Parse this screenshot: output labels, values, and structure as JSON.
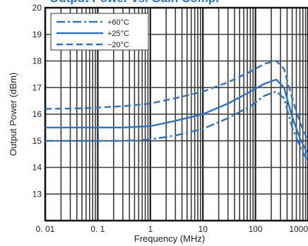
{
  "chart_data": {
    "type": "line",
    "title": "Output Power vs. Gain Compr",
    "xlabel": "Frequency (MHz)",
    "ylabel": "Output Power (dBm)",
    "x_scale": "log",
    "xlim": [
      0.01,
      1000
    ],
    "ylim": [
      12,
      20
    ],
    "x_ticks": [
      {
        "value": 0.01,
        "label": "0. 01"
      },
      {
        "value": 0.1,
        "label": "0. 1"
      },
      {
        "value": 1,
        "label": "1"
      },
      {
        "value": 10,
        "label": "10"
      },
      {
        "value": 100,
        "label": "100"
      },
      {
        "value": 1000,
        "label": "1000"
      }
    ],
    "y_ticks": [
      13,
      14,
      15,
      16,
      17,
      18,
      19,
      20
    ],
    "grid": true,
    "legend_position": "top-left",
    "series": [
      {
        "name": "+60°C",
        "style": "dash-dot",
        "color": "#2a74c9",
        "points": [
          [
            0.01,
            15.0
          ],
          [
            0.05,
            15.0
          ],
          [
            0.3,
            15.0
          ],
          [
            1,
            15.05
          ],
          [
            3,
            15.2
          ],
          [
            10,
            15.45
          ],
          [
            30,
            15.85
          ],
          [
            80,
            16.3
          ],
          [
            150,
            16.7
          ],
          [
            250,
            16.85
          ],
          [
            350,
            16.6
          ],
          [
            500,
            15.5
          ],
          [
            700,
            14.8
          ],
          [
            1000,
            14.2
          ]
        ]
      },
      {
        "name": "+25°C",
        "style": "solid",
        "color": "#2a74c9",
        "points": [
          [
            0.01,
            15.5
          ],
          [
            0.05,
            15.5
          ],
          [
            0.3,
            15.5
          ],
          [
            1,
            15.55
          ],
          [
            3,
            15.75
          ],
          [
            10,
            16.0
          ],
          [
            30,
            16.4
          ],
          [
            80,
            16.85
          ],
          [
            150,
            17.15
          ],
          [
            250,
            17.3
          ],
          [
            350,
            17.0
          ],
          [
            500,
            15.9
          ],
          [
            700,
            15.1
          ],
          [
            1000,
            14.5
          ]
        ]
      },
      {
        "name": "−20°C",
        "style": "dashed",
        "color": "#2a74c9",
        "points": [
          [
            0.01,
            16.2
          ],
          [
            0.05,
            16.22
          ],
          [
            0.3,
            16.3
          ],
          [
            1,
            16.4
          ],
          [
            3,
            16.6
          ],
          [
            10,
            16.85
          ],
          [
            30,
            17.2
          ],
          [
            80,
            17.6
          ],
          [
            150,
            17.9
          ],
          [
            250,
            18.0
          ],
          [
            350,
            17.7
          ],
          [
            500,
            16.6
          ],
          [
            700,
            15.7
          ],
          [
            1000,
            15.0
          ]
        ]
      }
    ]
  }
}
